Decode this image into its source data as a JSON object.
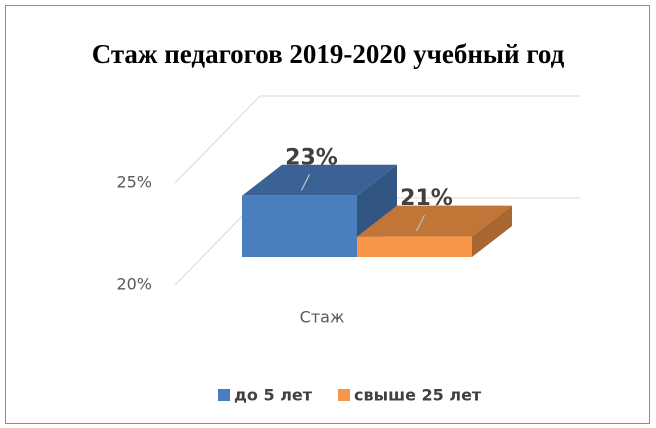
{
  "chart_data": {
    "type": "bar3d",
    "title": "Стаж педагогов 2019-2020 учебный год",
    "categories": [
      "Стаж"
    ],
    "series": [
      {
        "name": "до 5 лет",
        "color": "#4a7ebf",
        "values": [
          23
        ],
        "value_labels": [
          "23%"
        ]
      },
      {
        "name": "свыше 25 лет",
        "color": "#f79646",
        "values": [
          21
        ],
        "value_labels": [
          "21%"
        ]
      }
    ],
    "ylim": [
      20,
      25
    ],
    "yticks": [
      {
        "value": 20,
        "label": "20%"
      },
      {
        "value": 25,
        "label": "25%"
      }
    ],
    "grid": true,
    "legend": "bottom"
  }
}
